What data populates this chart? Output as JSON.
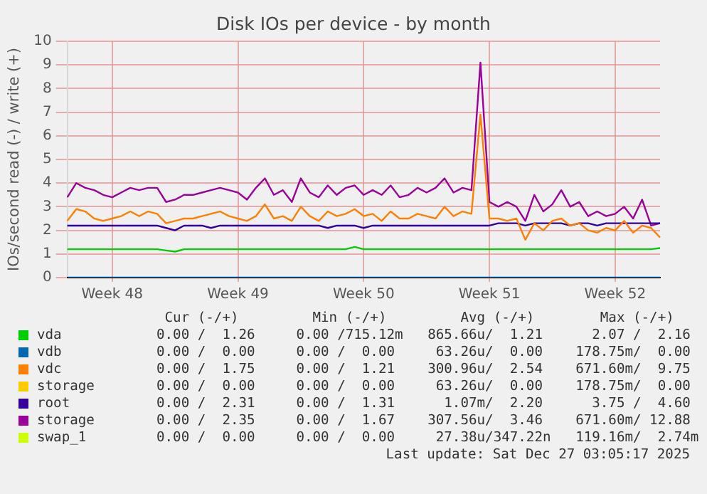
{
  "chart_data": {
    "type": "line",
    "title": "Disk IOs per device - by month",
    "ylabel": "IOs/second read (-) / write (+)",
    "categories": [
      null,
      null,
      null,
      null,
      null,
      "Week 48",
      null,
      null,
      null,
      null,
      null,
      null,
      null,
      null,
      null,
      null,
      null,
      null,
      null,
      "Week 49",
      null,
      null,
      null,
      null,
      null,
      null,
      null,
      null,
      null,
      null,
      null,
      null,
      null,
      "Week 50",
      null,
      null,
      null,
      null,
      null,
      null,
      null,
      null,
      null,
      null,
      null,
      null,
      null,
      "Week 51",
      null,
      null,
      null,
      null,
      null,
      null,
      null,
      null,
      null,
      null,
      null,
      null,
      null,
      "Week 52",
      null,
      null,
      null,
      null,
      null
    ],
    "ylim": [
      0,
      10
    ],
    "yticks": [
      0,
      1,
      2,
      3,
      4,
      5,
      6,
      7,
      8,
      9,
      10
    ],
    "grid": true,
    "legend": "bottom",
    "marker": "none",
    "line_style": "solid",
    "series": [
      {
        "name": "vda",
        "color": "#00cc00",
        "values": [
          1.2,
          1.2,
          1.2,
          1.2,
          1.2,
          1.2,
          1.2,
          1.2,
          1.2,
          1.2,
          1.2,
          1.15,
          1.1,
          1.2,
          1.2,
          1.2,
          1.2,
          1.2,
          1.2,
          1.2,
          1.2,
          1.2,
          1.2,
          1.2,
          1.2,
          1.2,
          1.2,
          1.2,
          1.2,
          1.2,
          1.2,
          1.2,
          1.3,
          1.2,
          1.2,
          1.2,
          1.2,
          1.2,
          1.2,
          1.2,
          1.2,
          1.2,
          1.2,
          1.2,
          1.2,
          1.2,
          1.2,
          1.2,
          1.2,
          1.2,
          1.2,
          1.2,
          1.2,
          1.2,
          1.2,
          1.2,
          1.2,
          1.2,
          1.2,
          1.2,
          1.2,
          1.2,
          1.2,
          1.2,
          1.2,
          1.2,
          1.25
        ]
      },
      {
        "name": "vdb",
        "color": "#0066b3",
        "values": [
          0,
          0,
          0,
          0,
          0,
          0,
          0,
          0,
          0,
          0,
          0,
          0,
          0,
          0,
          0,
          0,
          0,
          0,
          0,
          0,
          0,
          0,
          0,
          0,
          0,
          0,
          0,
          0,
          0,
          0,
          0,
          0,
          0,
          0,
          0,
          0,
          0,
          0,
          0,
          0,
          0,
          0,
          0,
          0,
          0,
          0,
          0,
          0,
          0,
          0,
          0,
          0,
          0,
          0,
          0,
          0,
          0,
          0,
          0,
          0,
          0,
          0,
          0,
          0,
          0,
          0,
          0
        ]
      },
      {
        "name": "vdc",
        "color": "#ff8000",
        "values": [
          2.4,
          2.9,
          2.8,
          2.5,
          2.4,
          2.5,
          2.6,
          2.8,
          2.6,
          2.8,
          2.7,
          2.3,
          2.4,
          2.5,
          2.5,
          2.6,
          2.7,
          2.8,
          2.6,
          2.5,
          2.4,
          2.6,
          3.1,
          2.5,
          2.6,
          2.4,
          3.0,
          2.6,
          2.4,
          2.8,
          2.6,
          2.7,
          2.9,
          2.6,
          2.7,
          2.4,
          2.8,
          2.5,
          2.5,
          2.7,
          2.6,
          2.5,
          3.0,
          2.6,
          2.8,
          2.7,
          6.9,
          2.5,
          2.5,
          2.4,
          2.5,
          1.6,
          2.3,
          2.0,
          2.4,
          2.5,
          2.2,
          2.3,
          2.0,
          1.9,
          2.1,
          2.0,
          2.4,
          1.9,
          2.2,
          2.1,
          1.7
        ]
      },
      {
        "name": "storage",
        "color": "#ffcc00",
        "values": [
          null,
          null,
          null,
          null,
          null,
          null,
          null,
          null,
          null,
          null,
          null,
          null,
          null,
          null,
          null,
          null,
          null,
          null,
          null,
          null,
          null,
          null,
          null,
          null,
          null,
          null,
          null,
          null,
          null,
          null,
          null,
          null,
          null,
          null,
          null,
          null,
          null,
          null,
          null,
          null,
          null,
          null,
          null,
          null,
          null,
          null,
          null,
          null,
          null,
          null,
          null,
          null,
          null,
          null,
          null,
          null,
          null,
          null,
          null,
          null,
          null,
          null,
          null,
          null,
          null,
          null,
          null
        ]
      },
      {
        "name": "root",
        "color": "#330099",
        "values": [
          2.2,
          2.2,
          2.2,
          2.2,
          2.2,
          2.2,
          2.2,
          2.2,
          2.2,
          2.2,
          2.2,
          2.1,
          2.0,
          2.2,
          2.2,
          2.2,
          2.1,
          2.2,
          2.2,
          2.2,
          2.2,
          2.2,
          2.2,
          2.2,
          2.2,
          2.2,
          2.2,
          2.2,
          2.2,
          2.1,
          2.2,
          2.2,
          2.2,
          2.1,
          2.2,
          2.2,
          2.2,
          2.2,
          2.2,
          2.2,
          2.2,
          2.2,
          2.2,
          2.2,
          2.2,
          2.2,
          2.2,
          2.2,
          2.3,
          2.3,
          2.3,
          2.2,
          2.3,
          2.3,
          2.3,
          2.3,
          2.2,
          2.3,
          2.3,
          2.2,
          2.3,
          2.3,
          2.3,
          2.3,
          2.3,
          2.3,
          2.3
        ]
      },
      {
        "name": "storage",
        "color": "#990099",
        "values": [
          3.4,
          4.0,
          3.8,
          3.7,
          3.5,
          3.4,
          3.6,
          3.8,
          3.7,
          3.8,
          3.8,
          3.2,
          3.3,
          3.5,
          3.5,
          3.6,
          3.7,
          3.8,
          3.7,
          3.6,
          3.3,
          3.8,
          4.2,
          3.5,
          3.7,
          3.2,
          4.2,
          3.6,
          3.4,
          3.9,
          3.5,
          3.8,
          3.9,
          3.5,
          3.7,
          3.5,
          3.9,
          3.4,
          3.5,
          3.8,
          3.6,
          3.8,
          4.2,
          3.6,
          3.8,
          3.7,
          9.1,
          3.2,
          3.0,
          3.2,
          3.0,
          2.4,
          3.5,
          2.8,
          3.1,
          3.7,
          3.0,
          3.2,
          2.6,
          2.8,
          2.6,
          2.7,
          3.0,
          2.5,
          3.3,
          2.2,
          2.3
        ]
      },
      {
        "name": "swap_1",
        "color": "#ccff00",
        "values": [
          null,
          null,
          null,
          null,
          null,
          null,
          null,
          null,
          null,
          null,
          null,
          null,
          null,
          null,
          null,
          null,
          null,
          null,
          null,
          null,
          null,
          null,
          null,
          null,
          null,
          null,
          null,
          null,
          null,
          null,
          null,
          null,
          null,
          null,
          null,
          null,
          null,
          null,
          null,
          null,
          null,
          null,
          null,
          null,
          null,
          null,
          null,
          null,
          null,
          null,
          null,
          null,
          null,
          null,
          null,
          null,
          null,
          null,
          null,
          null,
          null,
          null,
          null,
          null,
          null,
          null,
          null
        ]
      }
    ],
    "annotations": [
      " Cur (-/+)         Min (-/+)         Avg (-/+)        Max (-/+)",
      "0.00 /  1.26     0.00 /715.12m   865.66u/  1.21      2.07 /  2.16",
      "0.00 /  0.00     0.00 /  0.00     63.26u/  0.00    178.75m/  0.00",
      "0.00 /  1.75     0.00 /  1.21    300.96u/  2.54    671.60m/  9.75",
      "0.00 /  0.00     0.00 /  0.00     63.26u/  0.00    178.75m/  0.00",
      "0.00 /  2.31     0.00 /  1.31      1.07m/  2.20      3.75 /  4.60",
      "0.00 /  2.35     0.00 /  1.67    307.56u/  3.46    671.60m/ 12.88",
      "0.00 /  0.00     0.00 /  0.00     27.38u/347.22n   119.16m/  2.74m",
      "Last update: Sat Dec 27 03:05:17 2025"
    ]
  }
}
